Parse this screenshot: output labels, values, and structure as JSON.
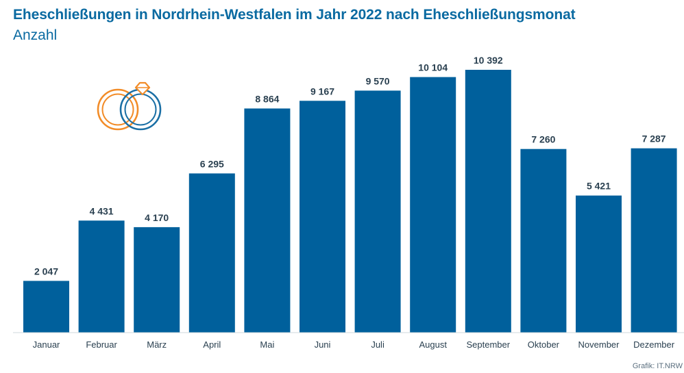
{
  "chart_data": {
    "type": "bar",
    "title": "Eheschließungen in Nordrhein-Westfalen im Jahr 2022 nach Eheschließungsmonat",
    "subtitle": "Anzahl",
    "categories": [
      "Januar",
      "Februar",
      "März",
      "April",
      "Mai",
      "Juni",
      "Juli",
      "August",
      "September",
      "Oktober",
      "November",
      "Dezember"
    ],
    "values": [
      2047,
      4431,
      4170,
      6295,
      8864,
      9167,
      9570,
      10104,
      10392,
      7260,
      5421,
      7287
    ],
    "value_labels": [
      "2 047",
      "4 431",
      "4 170",
      "6 295",
      "8 864",
      "9 167",
      "9 570",
      "10 104",
      "10 392",
      "7 260",
      "5 421",
      "7 287"
    ],
    "xlabel": "",
    "ylabel": "",
    "ylim": [
      0,
      10392
    ],
    "grid": false,
    "legend": "none",
    "bar_color": "#00609c",
    "source": "Grafik: IT.NRW"
  },
  "decoration": {
    "icon": "wedding-rings-icon",
    "ring_colors": [
      "#f28c28",
      "#1a6fa5"
    ]
  }
}
